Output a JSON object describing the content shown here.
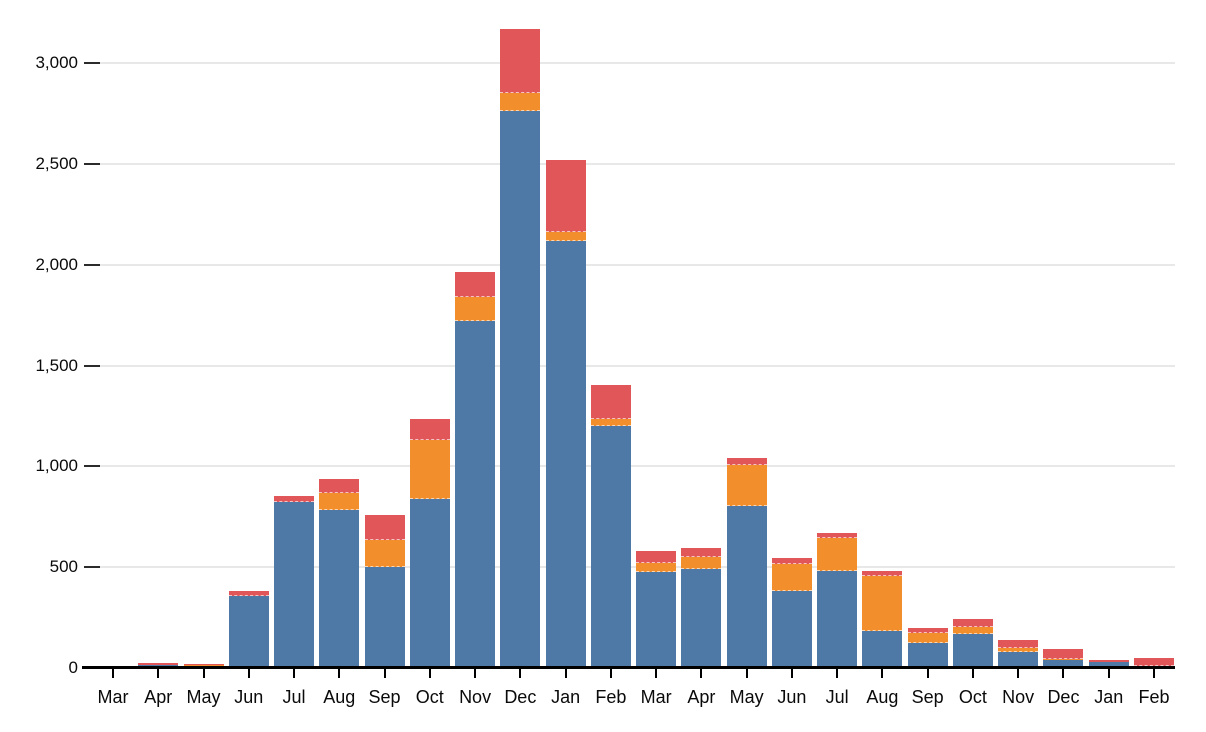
{
  "chart_data": {
    "type": "bar",
    "stacked": true,
    "title": "",
    "xlabel": "",
    "ylabel": "",
    "categories": [
      "Mar",
      "Apr",
      "May",
      "Jun",
      "Jul",
      "Aug",
      "Sep",
      "Oct",
      "Nov",
      "Dec",
      "Jan",
      "Feb",
      "Mar",
      "Apr",
      "May",
      "Jun",
      "Jul",
      "Aug",
      "Sep",
      "Oct",
      "Nov",
      "Dec",
      "Jan",
      "Feb"
    ],
    "series": [
      {
        "name": "blue",
        "color": "#4e79a7",
        "values": [
          2,
          15,
          10,
          355,
          825,
          785,
          500,
          840,
          1720,
          2760,
          2115,
          1200,
          475,
          490,
          805,
          380,
          480,
          185,
          125,
          170,
          80,
          40,
          30,
          10
        ]
      },
      {
        "name": "orange",
        "color": "#f28e2b",
        "values": [
          0,
          0,
          4,
          0,
          0,
          85,
          135,
          290,
          120,
          90,
          45,
          35,
          45,
          60,
          200,
          135,
          165,
          270,
          50,
          35,
          20,
          5,
          0,
          0
        ]
      },
      {
        "name": "red",
        "color": "#e15759",
        "values": [
          8,
          12,
          8,
          25,
          30,
          65,
          125,
          105,
          125,
          320,
          360,
          170,
          60,
          45,
          35,
          30,
          25,
          25,
          25,
          40,
          40,
          50,
          12,
          40
        ]
      }
    ],
    "ylim": [
      0,
      3200
    ],
    "y_ticks": [
      0,
      500,
      1000,
      1500,
      2000,
      2500,
      3000
    ],
    "y_tick_labels": [
      "0",
      "500",
      "1,000",
      "1,500",
      "2,000",
      "2,500",
      "3,000"
    ],
    "grid": true,
    "legend": "none",
    "colors": {
      "background": "#ffffff",
      "gridline": "#e8e8e8",
      "axis": "#000000",
      "tick": "#2b2b2b",
      "text": "#0a0a0a"
    }
  }
}
